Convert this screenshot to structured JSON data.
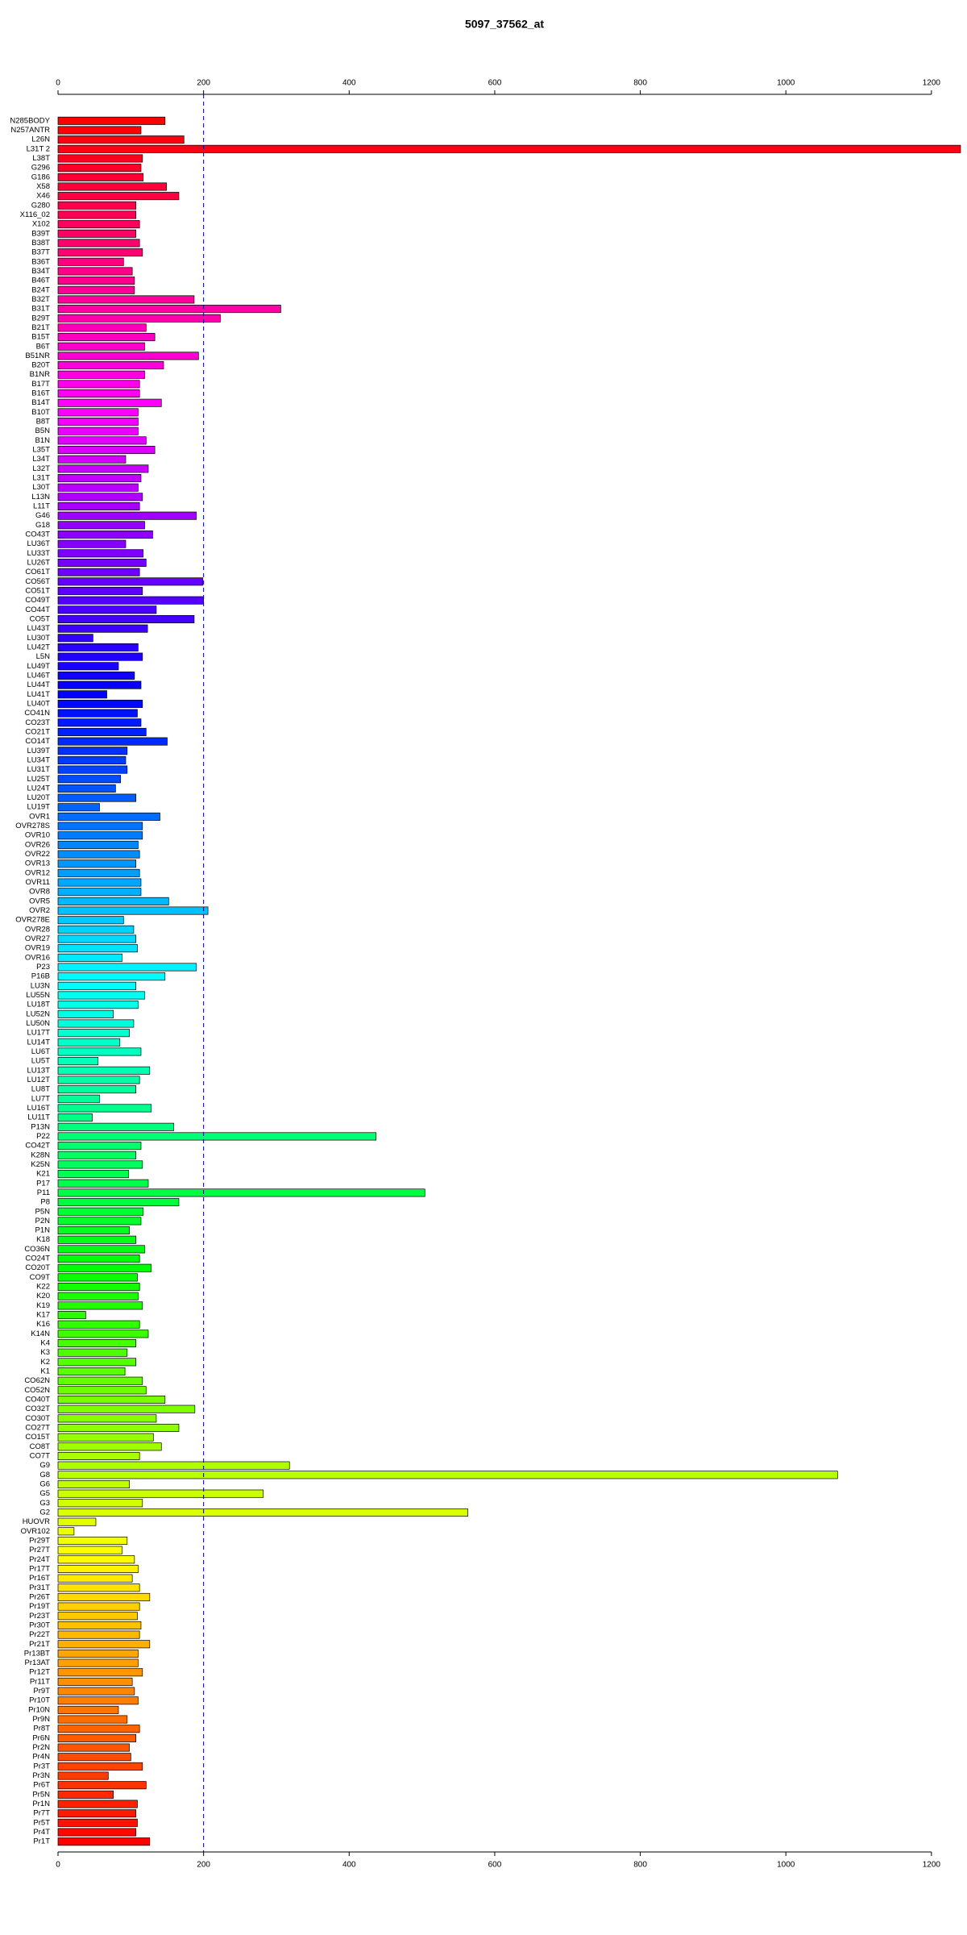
{
  "chart_data": {
    "type": "barh",
    "title": "5097_37562_at",
    "categories": [
      "N285BODY",
      "N257ANTR",
      "L26N",
      "L31T 2",
      "L38T",
      "G296",
      "G186",
      "X58",
      "X46",
      "G280",
      "X116_02",
      "X102",
      "B39T",
      "B38T",
      "B37T",
      "B36T",
      "B34T",
      "B46T",
      "B24T",
      "B32T",
      "B31T",
      "B29T",
      "B21T",
      "B15T",
      "B6T",
      "B51NR",
      "B20T",
      "B1NR",
      "B17T",
      "B16T",
      "B14T",
      "B10T",
      "B8T",
      "B5N",
      "B1N",
      "L35T",
      "L34T",
      "L32T",
      "L31T",
      "L30T",
      "L13N",
      "L11T",
      "G46",
      "G18",
      "CO43T",
      "LU36T",
      "LU33T",
      "LU26T",
      "CO61T",
      "CO56T",
      "CO51T",
      "CO49T",
      "CO44T",
      "CO5T",
      "LU43T",
      "LU30T",
      "LU42T",
      "L5N",
      "LU49T",
      "LU46T",
      "LU44T",
      "LU41T",
      "LU40T",
      "CO41N",
      "CO23T",
      "CO21T",
      "CO14T",
      "LU39T",
      "LU34T",
      "LU31T",
      "LU25T",
      "LU24T",
      "LU20T",
      "LU19T",
      "OVR1",
      "OVR278S",
      "OVR10",
      "OVR26",
      "OVR22",
      "OVR13",
      "OVR12",
      "OVR11",
      "OVR8",
      "OVR5",
      "OVR2",
      "OVR278E",
      "OVR28",
      "OVR27",
      "OVR19",
      "OVR16",
      "P23",
      "P16B",
      "LU3N",
      "LU55N",
      "LU18T",
      "LU52N",
      "LU50N",
      "LU17T",
      "LU14T",
      "LU6T",
      "LU5T",
      "LU13T",
      "LU12T",
      "LU8T",
      "LU7T",
      "LU16T",
      "LU11T",
      "P13N",
      "P22",
      "CO42T",
      "K28N",
      "K25N",
      "K21",
      "P17",
      "P11",
      "P8",
      "P5N",
      "P2N",
      "P1N",
      "K18",
      "CO36N",
      "CO24T",
      "CO20T",
      "CO9T",
      "K22",
      "K20",
      "K19",
      "K17",
      "K16",
      "K14N",
      "K4",
      "K3",
      "K2",
      "K1",
      "CO62N",
      "CO52N",
      "CO40T",
      "CO32T",
      "CO30T",
      "CO27T",
      "CO15T",
      "CO8T",
      "CO7T",
      "G9",
      "G8",
      "G6",
      "G5",
      "G3",
      "G2",
      "HUOVR",
      "OVR102",
      "Pr29T",
      "Pr27T",
      "Pr24T",
      "Pr17T",
      "Pr16T",
      "Pr31T",
      "Pr26T",
      "Pr19T",
      "Pr23T",
      "Pr30T",
      "Pr22T",
      "Pr21T",
      "Pr13BT",
      "Pr13AT",
      "Pr12T",
      "Pr11T",
      "Pr9T",
      "Pr10T",
      "Pr10N",
      "Pr9N",
      "Pr8T",
      "Pr6N",
      "Pr2N",
      "Pr4N",
      "Pr3T",
      "Pr3N",
      "Pr6T",
      "Pr5N",
      "Pr1N",
      "Pr7T",
      "Pr5T",
      "Pr4T",
      "Pr1T"
    ],
    "values": [
      147,
      114,
      173,
      1240,
      116,
      114,
      117,
      149,
      166,
      107,
      107,
      112,
      107,
      112,
      116,
      90,
      102,
      105,
      105,
      187,
      306,
      223,
      121,
      133,
      119,
      193,
      145,
      119,
      112,
      112,
      142,
      110,
      110,
      110,
      121,
      133,
      93,
      124,
      114,
      110,
      116,
      112,
      190,
      119,
      130,
      93,
      117,
      121,
      112,
      199,
      116,
      200,
      135,
      187,
      123,
      48,
      110,
      116,
      83,
      105,
      114,
      67,
      116,
      109,
      114,
      121,
      150,
      95,
      93,
      95,
      86,
      79,
      107,
      57,
      140,
      116,
      116,
      110,
      112,
      107,
      112,
      114,
      114,
      152,
      206,
      90,
      104,
      107,
      109,
      88,
      190,
      147,
      107,
      119,
      110,
      76,
      104,
      98,
      85,
      114,
      55,
      126,
      112,
      107,
      57,
      128,
      47,
      159,
      437,
      114,
      107,
      116,
      97,
      124,
      504,
      166,
      117,
      114,
      98,
      107,
      119,
      112,
      128,
      109,
      112,
      110,
      116,
      38,
      112,
      124,
      107,
      95,
      107,
      92,
      116,
      121,
      147,
      188,
      135,
      166,
      131,
      142,
      112,
      318,
      1071,
      98,
      282,
      116,
      563,
      52,
      22,
      95,
      88,
      105,
      110,
      102,
      112,
      126,
      112,
      109,
      114,
      112,
      126,
      110,
      110,
      116,
      102,
      105,
      110,
      83,
      95,
      112,
      107,
      98,
      100,
      116,
      69,
      121,
      76,
      109,
      107,
      109,
      107,
      126
    ],
    "color_stops": [
      "#ff0000",
      "#ff00ff",
      "#0000ff",
      "#00ffff",
      "#00ff00",
      "#ffff00",
      "#ff0000"
    ],
    "xlim": [
      0,
      1240
    ],
    "xticks": [
      0,
      200,
      400,
      600,
      800,
      1000,
      1200
    ],
    "reference_line": 200
  }
}
